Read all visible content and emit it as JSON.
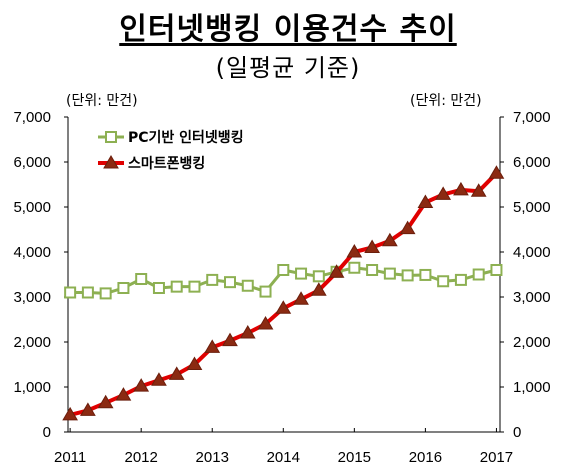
{
  "chart_data": {
    "type": "line",
    "title": "인터넷뱅킹 이용건수 추이",
    "subtitle": "(일평균 기준)",
    "unit_left": "(단위: 만건)",
    "unit_right": "(단위: 만건)",
    "xlabel": "",
    "ylabel": "",
    "ylim": [
      0,
      7000
    ],
    "y_ticks": [
      "7,000",
      "6,000",
      "5,000",
      "4,000",
      "3,000",
      "2,000",
      "1,000",
      "0"
    ],
    "x_tick_labels": [
      "2011",
      "2012",
      "2013",
      "2014",
      "2015",
      "2016",
      "2017"
    ],
    "grid": false,
    "legend_position": "top-left",
    "series": [
      {
        "name": "PC기반 인터넷뱅킹",
        "color": "#8db052",
        "marker": "square",
        "x": [
          2011.0,
          2011.25,
          2011.5,
          2011.75,
          2012.0,
          2012.25,
          2012.5,
          2012.75,
          2013.0,
          2013.25,
          2013.5,
          2013.75,
          2014.0,
          2014.25,
          2014.5,
          2014.75,
          2015.0,
          2015.25,
          2015.5,
          2015.75,
          2016.0,
          2016.25,
          2016.5,
          2016.75,
          2017.0
        ],
        "values": [
          3100,
          3100,
          3080,
          3200,
          3400,
          3200,
          3230,
          3230,
          3380,
          3330,
          3250,
          3120,
          3600,
          3520,
          3460,
          3560,
          3650,
          3600,
          3520,
          3480,
          3490,
          3350,
          3380,
          3500,
          3600
        ]
      },
      {
        "name": "스마트폰뱅킹",
        "color": "#e00000",
        "marker": "triangle",
        "x": [
          2011.0,
          2011.25,
          2011.5,
          2011.75,
          2012.0,
          2012.25,
          2012.5,
          2012.75,
          2013.0,
          2013.25,
          2013.5,
          2013.75,
          2014.0,
          2014.25,
          2014.5,
          2014.75,
          2015.0,
          2015.25,
          2015.5,
          2015.75,
          2016.0,
          2016.25,
          2016.5,
          2016.75,
          2017.0
        ],
        "values": [
          380,
          480,
          650,
          820,
          1020,
          1150,
          1280,
          1500,
          1880,
          2030,
          2200,
          2400,
          2750,
          2950,
          3150,
          3550,
          4000,
          4100,
          4250,
          4520,
          5100,
          5280,
          5380,
          5350,
          5750
        ]
      }
    ]
  }
}
